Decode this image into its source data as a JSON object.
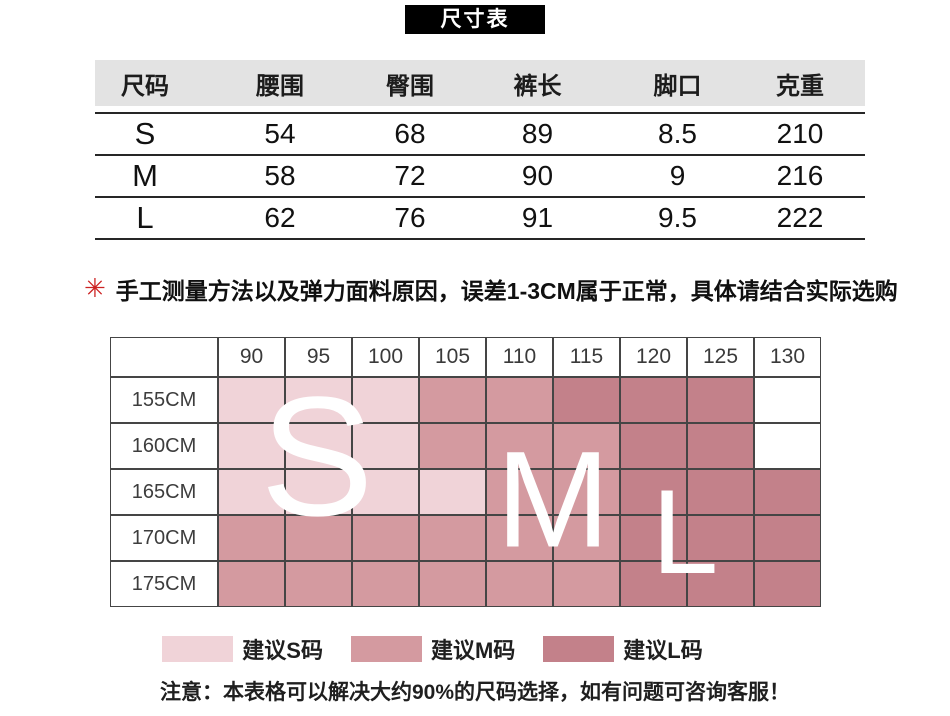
{
  "title": "尺寸表",
  "colors": {
    "suggest_s": "#f0d3d8",
    "suggest_m": "#d49aa0",
    "suggest_l": "#c3818a",
    "note_mark_red": "#cc2222",
    "title_bg": "#000000",
    "table_header_bg": "#e3e3e3"
  },
  "notes": {
    "mark": "✳",
    "measure_note": "手工测量方法以及弹力面料原因，误差1-3CM属于正常，具体请结合实际选购",
    "footer_note": "注意：本表格可以解决大约90%的尺码选择，如有问题可咨询客服！"
  },
  "chart_data": [
    {
      "type": "table",
      "title": "尺寸表",
      "columns": [
        "尺码",
        "腰围",
        "臀围",
        "裤长",
        "脚口",
        "克重"
      ],
      "rows": [
        [
          "S",
          54,
          68,
          89,
          8.5,
          210
        ],
        [
          "M",
          58,
          72,
          90,
          9,
          216
        ],
        [
          "L",
          62,
          76,
          91,
          9.5,
          222
        ]
      ]
    },
    {
      "type": "heatmap",
      "x_labels": [
        "90",
        "95",
        "100",
        "105",
        "110",
        "115",
        "120",
        "125",
        "130"
      ],
      "y_labels": [
        "155CM",
        "160CM",
        "165CM",
        "170CM",
        "175CM"
      ],
      "cells": [
        [
          "S",
          "S",
          "S",
          "M",
          "M",
          "L",
          "L",
          "L",
          ""
        ],
        [
          "S",
          "S",
          "S",
          "M",
          "M",
          "M",
          "L",
          "L",
          ""
        ],
        [
          "S",
          "S",
          "S",
          "S",
          "M",
          "M",
          "L",
          "L",
          "L"
        ],
        [
          "M",
          "M",
          "M",
          "M",
          "M",
          "M",
          "L",
          "L",
          "L"
        ],
        [
          "M",
          "M",
          "M",
          "M",
          "M",
          "M",
          "L",
          "L",
          "L"
        ]
      ],
      "overlay": [
        "S",
        "M",
        "L"
      ],
      "legend": [
        {
          "label": "建议S码",
          "shade": "S",
          "color": "#f0d3d8"
        },
        {
          "label": "建议M码",
          "shade": "M",
          "color": "#d49aa0"
        },
        {
          "label": "建议L码",
          "shade": "L",
          "color": "#c3818a"
        }
      ],
      "legend_position": "bottom"
    }
  ]
}
